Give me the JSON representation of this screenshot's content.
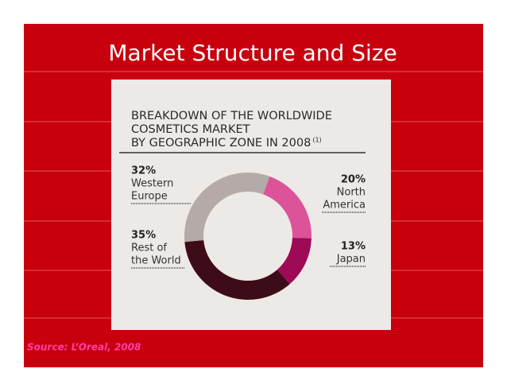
{
  "slide_title": "Market Structure and Size",
  "source": "Source: L’Oreal, 2008",
  "chart_data": {
    "type": "donut",
    "title": [
      "BREAKDOWN OF THE WORLDWIDE",
      "COSMETICS MARKET",
      "BY GEOGRAPHIC ZONE IN 2008"
    ],
    "title_note": "(1)",
    "categories": [
      [
        "North",
        "America"
      ],
      [
        "Japan"
      ],
      [
        "Rest of",
        "the World"
      ],
      [
        "Western",
        "Europe"
      ]
    ],
    "values": [
      20,
      13,
      35,
      32
    ],
    "value_labels": [
      "20%",
      "13%",
      "35%",
      "32%"
    ],
    "colors": [
      "#dc5399",
      "#9e0a56",
      "#3e0c18",
      "#b4aaa7"
    ]
  }
}
